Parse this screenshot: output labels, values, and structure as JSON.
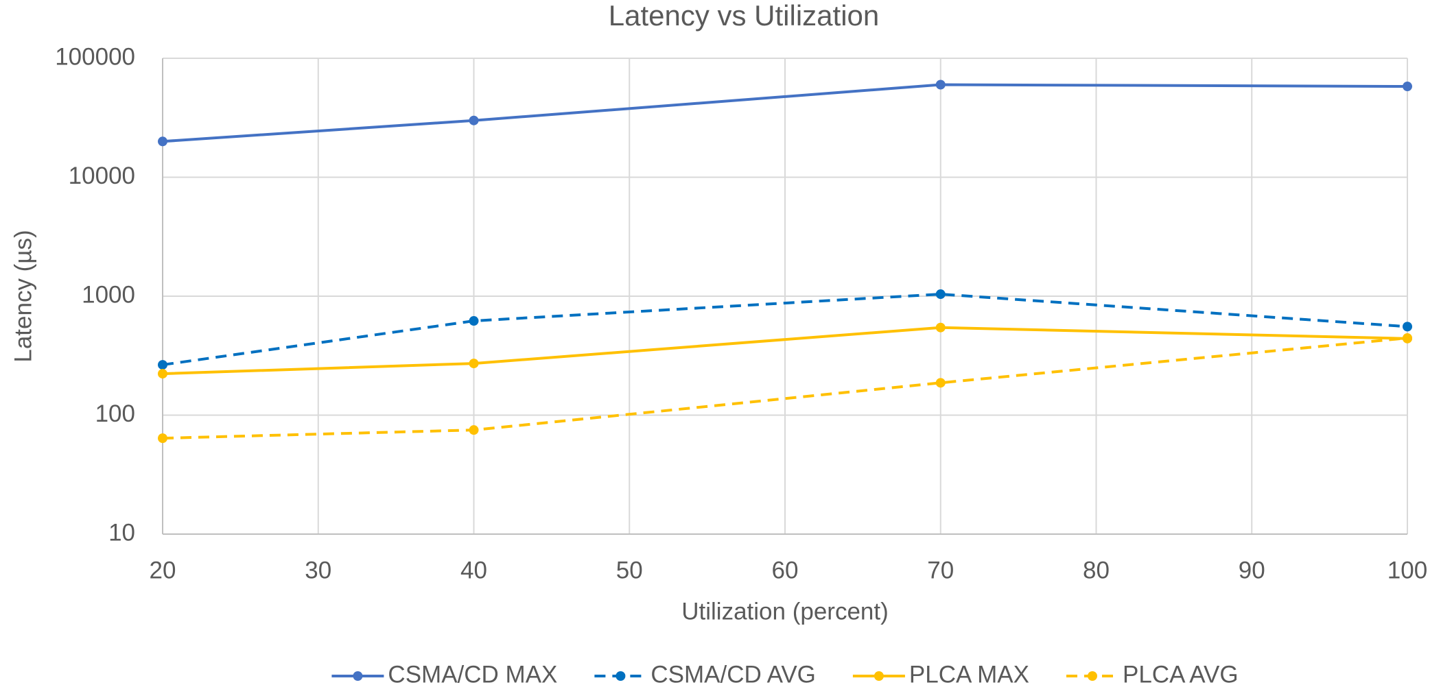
{
  "chart_data": {
    "type": "line",
    "title": "Latency vs Utilization",
    "xlabel": "Utilization (percent)",
    "ylabel": "Latency (µs)",
    "x": [
      20,
      40,
      70,
      100
    ],
    "series": [
      {
        "name": "CSMA/CD MAX",
        "color": "#4472c4",
        "line_style": "solid",
        "values": [
          20000,
          30000,
          60000,
          58000
        ]
      },
      {
        "name": "CSMA/CD AVG",
        "color": "#0070c0",
        "line_style": "dashed",
        "values": [
          265,
          620,
          1040,
          555
        ]
      },
      {
        "name": "PLCA MAX",
        "color": "#ffc000",
        "line_style": "solid",
        "values": [
          223,
          272,
          545,
          440
        ]
      },
      {
        "name": "PLCA AVG",
        "color": "#ffc000",
        "line_style": "dashed",
        "values": [
          64,
          75,
          187,
          445
        ]
      }
    ],
    "xlim": [
      20,
      100
    ],
    "xticks": [
      20,
      30,
      40,
      50,
      60,
      70,
      80,
      90,
      100
    ],
    "ylim": [
      10,
      100000
    ],
    "yticks": [
      10,
      100,
      1000,
      10000,
      100000
    ],
    "yscale": "log",
    "grid": true,
    "legend": "bottom"
  }
}
